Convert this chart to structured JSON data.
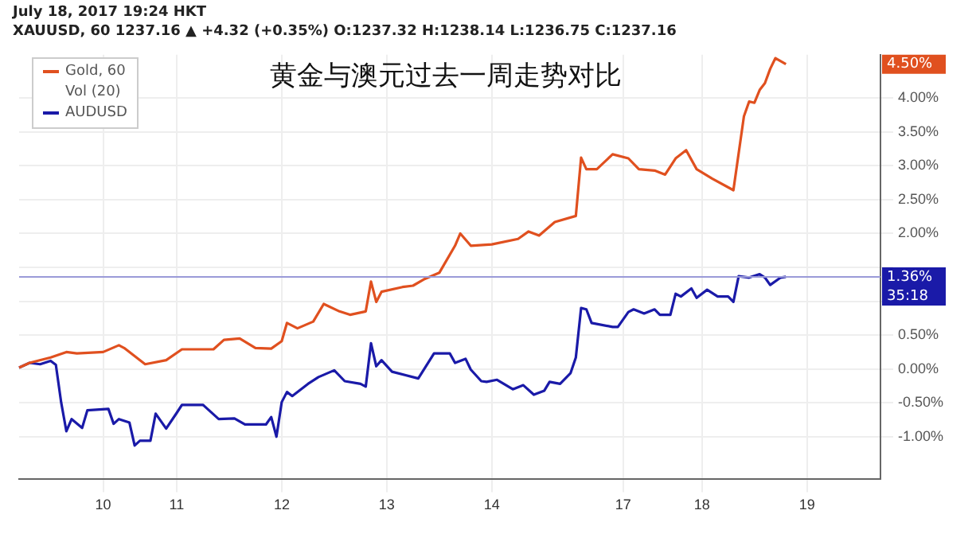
{
  "chart_data": {
    "type": "line",
    "title": "黄金与澳元过去一周走势对比",
    "annotations": [
      "July 18, 2017 19:24 HKT",
      "XAUUSD, 60  1237.16 ▲ +4.32 (+0.35%)  O:1237.32 H:1238.14 L:1236.75 C:1237.16",
      "Vol (20)",
      "35:18",
      "4.50%"
    ],
    "categories": [
      null,
      null,
      null,
      null,
      null,
      null,
      null,
      null,
      null,
      null,
      null,
      null,
      null,
      null,
      null,
      null,
      "10",
      null,
      null,
      null,
      null,
      null,
      null,
      null,
      null,
      null,
      null,
      null,
      null,
      null,
      "11",
      null,
      null,
      null,
      null,
      null,
      null,
      null,
      null,
      null,
      null,
      null,
      null,
      null,
      null,
      null,
      null,
      null,
      null,
      null,
      "12",
      null,
      null,
      null,
      null,
      null,
      null,
      null,
      null,
      null,
      null,
      null,
      null,
      null,
      null,
      null,
      null,
      null,
      null,
      null,
      "13",
      null,
      null,
      null,
      null,
      null,
      null,
      null,
      null,
      null,
      null,
      null,
      null,
      null,
      null,
      null,
      null,
      null,
      null,
      null,
      "14",
      null,
      null,
      null,
      null,
      null,
      null,
      null,
      null,
      null,
      null,
      null,
      null,
      null,
      null,
      null,
      null,
      null,
      null,
      null,
      null,
      null,
      null,
      null,
      null,
      "17",
      null,
      null,
      null,
      null,
      null,
      null,
      null,
      null,
      null,
      null,
      null,
      null,
      null,
      null,
      "18",
      null,
      null,
      null,
      null,
      null,
      null,
      null,
      null,
      null,
      null,
      null,
      null,
      null,
      null,
      null,
      null,
      null,
      null,
      null,
      "19",
      null,
      null,
      null,
      null,
      null,
      null,
      null,
      null,
      null,
      null,
      null,
      null,
      null,
      null
    ],
    "series": [
      {
        "name": "Gold, 60",
        "color": "#e0501f",
        "values": [
          0.02,
          null,
          0.09,
          null,
          null,
          null,
          0.17,
          null,
          null,
          0.25,
          null,
          0.23,
          null,
          null,
          null,
          null,
          0.25,
          null,
          null,
          0.35,
          0.31,
          null,
          null,
          null,
          0.07,
          null,
          null,
          null,
          0.13,
          null,
          null,
          0.29,
          null,
          null,
          null,
          null,
          null,
          0.29,
          null,
          0.43,
          null,
          null,
          0.45,
          null,
          null,
          0.31,
          null,
          null,
          0.3,
          null,
          0.41,
          0.68,
          null,
          0.6,
          null,
          null,
          0.7,
          null,
          0.96,
          null,
          null,
          0.85,
          null,
          0.8,
          null,
          null,
          0.85,
          1.29,
          0.99,
          1.14,
          null,
          null,
          null,
          1.21,
          null,
          1.23,
          null,
          1.32,
          null,
          null,
          1.42,
          null,
          null,
          1.82,
          2.0,
          null,
          1.82,
          null,
          null,
          null,
          1.84,
          null,
          null,
          null,
          null,
          1.92,
          null,
          2.03,
          null,
          1.97,
          null,
          null,
          2.17,
          null,
          null,
          null,
          2.26,
          3.12,
          2.95,
          null,
          2.95,
          null,
          null,
          3.17,
          null,
          null,
          3.11,
          null,
          2.95,
          null,
          null,
          2.93,
          null,
          2.87,
          null,
          3.11,
          null,
          3.23,
          null,
          2.95,
          null,
          null,
          2.81,
          null,
          null,
          null,
          2.64,
          null,
          3.73,
          3.95,
          3.93,
          4.12,
          4.22,
          4.43,
          4.59,
          null,
          4.5,
          null,
          null,
          null,
          null,
          null,
          null,
          null,
          null,
          null,
          null,
          null,
          null,
          null,
          null,
          null,
          null,
          null,
          null
        ]
      },
      {
        "name": "AUDUSD",
        "color": "#1a1aa8",
        "values": [
          0.02,
          null,
          0.09,
          null,
          0.07,
          null,
          0.12,
          0.06,
          -0.49,
          -0.92,
          -0.74,
          null,
          -0.87,
          -0.61,
          null,
          null,
          null,
          -0.59,
          -0.81,
          -0.74,
          null,
          -0.79,
          -1.13,
          -1.06,
          null,
          -1.06,
          -0.66,
          null,
          -0.88,
          null,
          -0.65,
          -0.53,
          null,
          null,
          null,
          -0.53,
          null,
          null,
          -0.74,
          null,
          null,
          -0.73,
          null,
          -0.82,
          null,
          null,
          null,
          -0.82,
          -0.71,
          -1.0,
          -0.49,
          -0.34,
          -0.4,
          null,
          null,
          -0.22,
          null,
          -0.12,
          null,
          null,
          -0.02,
          null,
          -0.18,
          null,
          null,
          -0.22,
          -0.26,
          0.38,
          0.04,
          0.13,
          null,
          -0.04,
          null,
          null,
          null,
          null,
          -0.14,
          null,
          null,
          0.23,
          null,
          null,
          0.23,
          0.09,
          null,
          0.15,
          -0.01,
          null,
          -0.18,
          -0.19,
          null,
          -0.16,
          null,
          null,
          -0.3,
          null,
          -0.24,
          null,
          -0.38,
          null,
          -0.32,
          -0.19,
          null,
          -0.22,
          null,
          -0.06,
          0.17,
          0.9,
          0.88,
          0.68,
          null,
          null,
          null,
          0.62,
          0.62,
          null,
          0.84,
          0.88,
          null,
          0.82,
          null,
          0.88,
          0.8,
          null,
          0.8,
          1.11,
          1.07,
          null,
          1.19,
          1.05,
          null,
          1.17,
          null,
          1.07,
          null,
          1.07,
          0.99,
          1.37,
          null,
          1.35,
          null,
          1.4,
          1.35,
          1.24,
          null,
          1.35,
          1.36,
          null,
          null,
          null,
          null,
          null,
          null,
          null,
          null,
          null,
          null,
          null,
          null,
          null,
          null,
          null,
          null,
          null,
          null
        ]
      }
    ],
    "ylim": [
      -1.63,
      4.64
    ],
    "yticks": [
      {
        "value": -1,
        "label": "-1.00%"
      },
      {
        "value": -0.5,
        "label": "-0.50%"
      },
      {
        "value": 0,
        "label": "0.00%"
      },
      {
        "value": 0.5,
        "label": "0.50%"
      },
      {
        "value": 1,
        "label": null
      },
      {
        "value": 1.5,
        "label": null
      },
      {
        "value": 2,
        "label": "2.00%"
      },
      {
        "value": 2.5,
        "label": "2.50%"
      },
      {
        "value": 3,
        "label": "3.00%"
      },
      {
        "value": 3.5,
        "label": "3.50%"
      },
      {
        "value": 4,
        "label": "4.00%"
      }
    ],
    "ref_lines": [
      {
        "axis": "y",
        "value": 1.36,
        "label": "1.36%",
        "color": "#9a9ad8"
      }
    ],
    "grid": true,
    "legend": "top left",
    "marker": "none",
    "line_style": "solid"
  }
}
